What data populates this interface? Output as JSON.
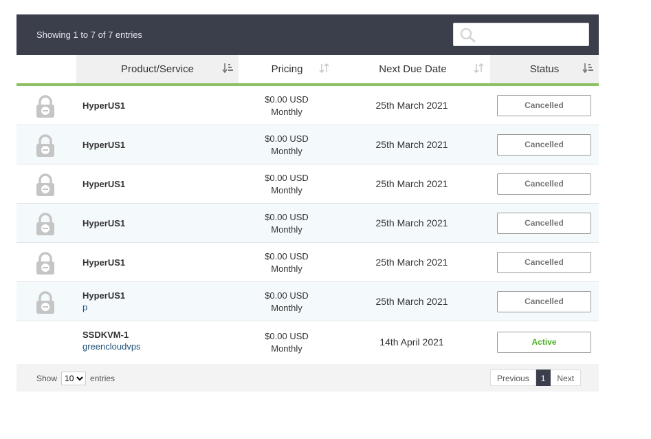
{
  "table_info": "Showing 1 to 7 of 7 entries",
  "search": {
    "placeholder": ""
  },
  "columns": [
    "Product/Service",
    "Pricing",
    "Next Due Date",
    "Status"
  ],
  "rows": [
    {
      "name": "HyperUS1",
      "domain": "",
      "price": "$0.00 USD",
      "cycle": "Monthly",
      "due": "25th March 2021",
      "status": "Cancelled",
      "locked": true
    },
    {
      "name": "HyperUS1",
      "domain": "",
      "price": "$0.00 USD",
      "cycle": "Monthly",
      "due": "25th March 2021",
      "status": "Cancelled",
      "locked": true
    },
    {
      "name": "HyperUS1",
      "domain": "",
      "price": "$0.00 USD",
      "cycle": "Monthly",
      "due": "25th March 2021",
      "status": "Cancelled",
      "locked": true
    },
    {
      "name": "HyperUS1",
      "domain": "",
      "price": "$0.00 USD",
      "cycle": "Monthly",
      "due": "25th March 2021",
      "status": "Cancelled",
      "locked": true
    },
    {
      "name": "HyperUS1",
      "domain": "",
      "price": "$0.00 USD",
      "cycle": "Monthly",
      "due": "25th March 2021",
      "status": "Cancelled",
      "locked": true
    },
    {
      "name": "HyperUS1",
      "domain": "p",
      "price": "$0.00 USD",
      "cycle": "Monthly",
      "due": "25th March 2021",
      "status": "Cancelled",
      "locked": true
    },
    {
      "name": "SSDKVM-1",
      "domain": "greencloudvps",
      "price": "$0.00 USD",
      "cycle": "Monthly",
      "due": "14th April 2021",
      "status": "Active",
      "locked": false
    }
  ],
  "footer": {
    "show_label": "Show",
    "page_size": "10",
    "entries_label": "entries",
    "prev_label": "Previous",
    "current_page": "1",
    "next_label": "Next"
  },
  "icons": {
    "search": "search-icon",
    "lock": "lock-icon",
    "sort": "sort-icon"
  },
  "colors": {
    "header_bg": "#3b3e4b",
    "accent_green": "#8dc063",
    "active": "#4caf25"
  }
}
